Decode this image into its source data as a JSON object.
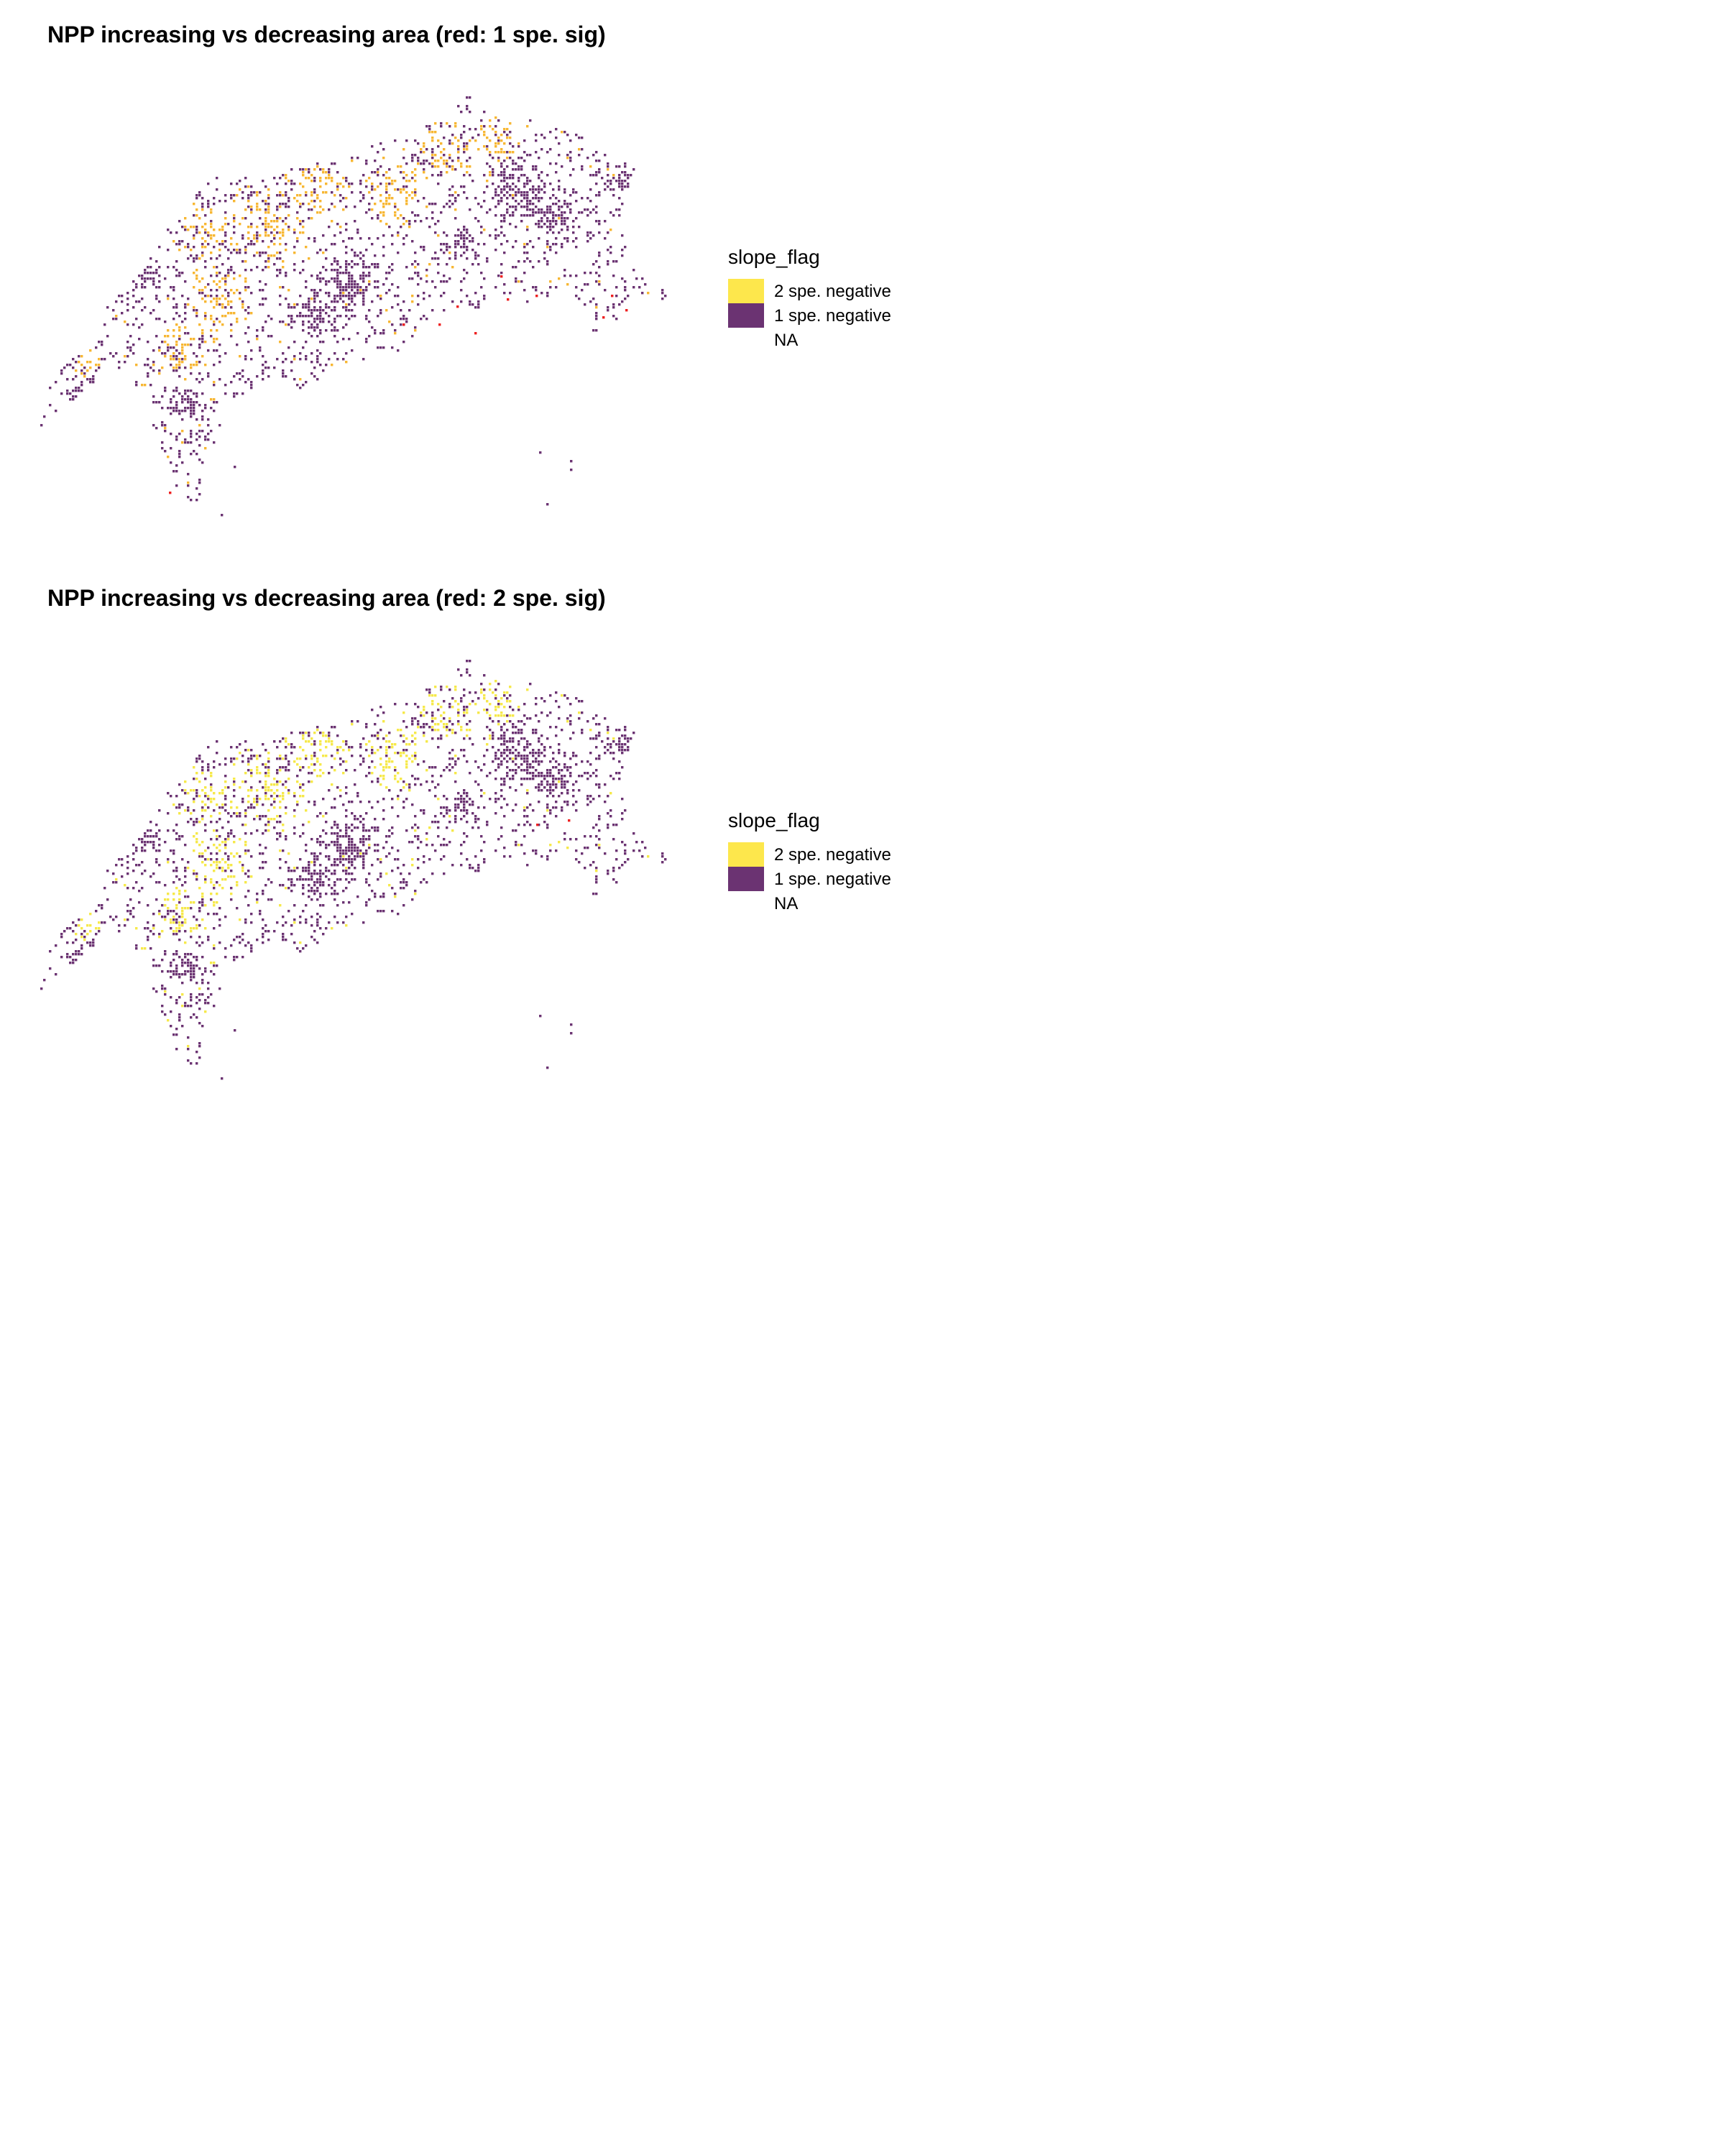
{
  "panels": [
    {
      "title": "NPP increasing vs decreasing area (red: 1 spe. sig)",
      "legend": {
        "title": "slope_flag",
        "entries": [
          {
            "label": "2 spe. negative",
            "color": "#fde74c"
          },
          {
            "label": "1 spe. negative",
            "color": "#6b3372"
          },
          {
            "label": "NA",
            "color": ""
          }
        ]
      },
      "map_colors": {
        "yellow_cells": "#f7b733",
        "purple_cells": "#6b3372",
        "highlight_cells": "#ee2020"
      }
    },
    {
      "title": "NPP increasing vs decreasing area (red: 2 spe. sig)",
      "legend": {
        "title": "slope_flag",
        "entries": [
          {
            "label": "2 spe. negative",
            "color": "#fde74c"
          },
          {
            "label": "1 spe. negative",
            "color": "#6b3372"
          },
          {
            "label": "NA",
            "color": ""
          }
        ]
      },
      "map_colors": {
        "yellow_cells": "#f6e94a",
        "purple_cells": "#6b3372",
        "highlight_cells": "#ee2020"
      }
    }
  ]
}
